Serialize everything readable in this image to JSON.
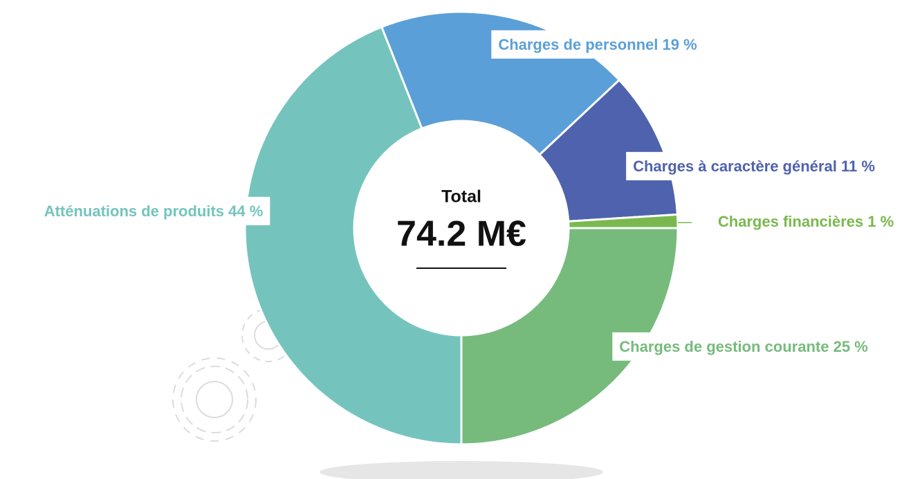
{
  "chart_data": {
    "type": "donut",
    "categories": [
      "Atténuations de produits",
      "Charges de personnel",
      "Charges à caractère général",
      "Charges financières",
      "Charges de gestion courante"
    ],
    "values": [
      44,
      19,
      11,
      1,
      25
    ],
    "value_labels": [
      "44 %",
      "19 %",
      "11 %",
      "1 %",
      "25 %"
    ],
    "colors": [
      "#74c4bd",
      "#5b9fd8",
      "#4f62ad",
      "#7ab84f",
      "#76bb7c"
    ],
    "center_title": "Total",
    "center_value": "74.2 M€"
  }
}
